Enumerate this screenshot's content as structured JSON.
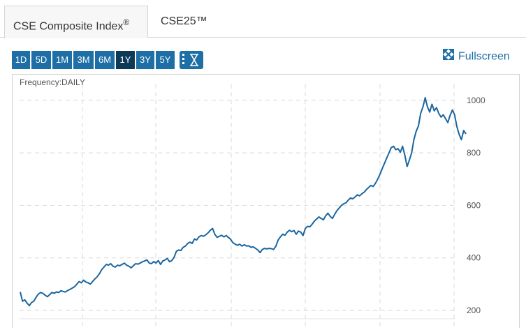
{
  "tabs": [
    {
      "label": "CSE Composite Index",
      "suffix": "®",
      "active": true
    },
    {
      "label": "CSE25™",
      "active": false
    }
  ],
  "toolbar": {
    "ranges": [
      "1D",
      "5D",
      "1M",
      "3M",
      "6M",
      "1Y",
      "3Y",
      "5Y"
    ],
    "selected_range": "1Y",
    "tools": [
      "more-options-icon",
      "hourglass-icon"
    ],
    "fullscreen_label": "Fullscreen",
    "accent_color": "#1d6fa6",
    "selected_color": "#0c3a57"
  },
  "chart_data": {
    "type": "line",
    "frequency_label": "Frequency:DAILY",
    "y_ticks": [
      200,
      400,
      600,
      800,
      1000
    ],
    "ylim": [
      170,
      1060
    ],
    "line_color": "#1a66a0",
    "grid": true,
    "series": [
      {
        "values": [
          270,
          235,
          240,
          228,
          218,
          230,
          235,
          250,
          262,
          268,
          265,
          258,
          252,
          260,
          268,
          265,
          270,
          268,
          275,
          272,
          270,
          276,
          280,
          285,
          290,
          300,
          310,
          305,
          315,
          308,
          305,
          300,
          310,
          320,
          328,
          340,
          355,
          365,
          375,
          372,
          378,
          368,
          365,
          372,
          370,
          375,
          380,
          372,
          368,
          362,
          370,
          378,
          376,
          380,
          385,
          388,
          392,
          380,
          378,
          386,
          380,
          390,
          375,
          388,
          392,
          398,
          385,
          390,
          402,
          425,
          430,
          428,
          440,
          445,
          455,
          460,
          455,
          472,
          468,
          480,
          485,
          482,
          488,
          495,
          505,
          512,
          490,
          478,
          482,
          486,
          480,
          485,
          478,
          470,
          458,
          452,
          448,
          452,
          445,
          450,
          445,
          446,
          440,
          442,
          436,
          430,
          420,
          432,
          436,
          434,
          436,
          435,
          432,
          445,
          468,
          480,
          490,
          486,
          498,
          505,
          500,
          504,
          490,
          502,
          498,
          485,
          512,
          520,
          518,
          528,
          540,
          548,
          556,
          550,
          545,
          560,
          570,
          558,
          550,
          566,
          580,
          590,
          600,
          606,
          610,
          620,
          628,
          625,
          632,
          640,
          636,
          644,
          650,
          660,
          668,
          676,
          672,
          684,
          700,
          718,
          740,
          760,
          780,
          800,
          820,
          825,
          812,
          816,
          802,
          825,
          790,
          748,
          772,
          800,
          850,
          882,
          902,
          950,
          975,
          1010,
          975,
          955,
          985,
          960,
          972,
          950,
          936,
          945,
          930,
          915,
          942,
          963,
          945,
          900,
          870,
          850,
          885,
          872
        ]
      }
    ]
  }
}
